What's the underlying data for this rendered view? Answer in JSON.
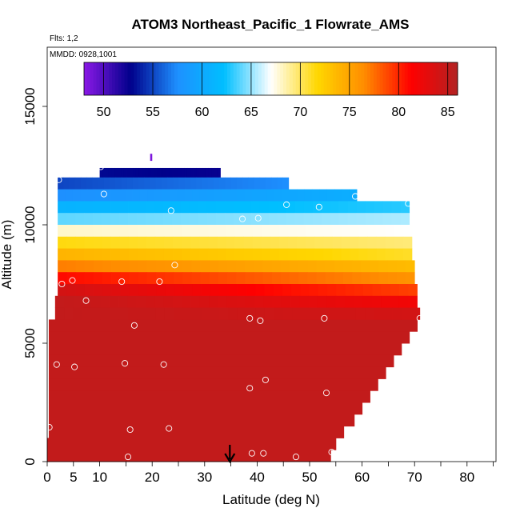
{
  "chart_data": {
    "type": "heatmap",
    "title": "ATOM3 Northeast_Pacific_1 Flowrate_AMS",
    "flights_label": "Flts: 1,2",
    "date_label": "MMDD: 0928,1001",
    "xlabel": "Latitude (deg N)",
    "ylabel": "Altitude (m)",
    "xlim": [
      0,
      85
    ],
    "ylim": [
      0,
      17500
    ],
    "x_ticks": [
      0,
      5,
      10,
      20,
      30,
      40,
      50,
      60,
      70,
      80
    ],
    "y_ticks": [
      0,
      5000,
      10000,
      15000
    ],
    "colorbar": {
      "min": 48,
      "max": 86,
      "ticks": [
        50,
        55,
        60,
        65,
        70,
        75,
        80,
        85
      ],
      "colors": [
        "#8b19e6",
        "#00008b",
        "#1e90ff",
        "#00bfff",
        "#ffffff",
        "#ffd700",
        "#ff8c00",
        "#ff0000",
        "#b22222"
      ]
    },
    "altitude_bands": [
      {
        "ymin": 12000,
        "ymax": 12400,
        "xmin": 10.0,
        "xmax": 33.0,
        "v_left": 53.0,
        "v_right": 52.5
      },
      {
        "ymin": 11500,
        "ymax": 12000,
        "xmin": 2.0,
        "xmax": 46.0,
        "v_left": 55.0,
        "v_right": 57.5
      },
      {
        "ymin": 11000,
        "ymax": 11500,
        "xmin": 2.0,
        "xmax": 59.0,
        "v_left": 57.5,
        "v_right": 60.5
      },
      {
        "ymin": 10500,
        "ymax": 11000,
        "xmin": 2.0,
        "xmax": 69.0,
        "v_left": 61.0,
        "v_right": 63.0
      },
      {
        "ymin": 10000,
        "ymax": 10500,
        "xmin": 2.0,
        "xmax": 69.0,
        "v_left": 64.0,
        "v_right": 65.5
      },
      {
        "ymin": 9500,
        "ymax": 10000,
        "xmin": 2.0,
        "xmax": 69.5,
        "v_left": 68.0,
        "v_right": 67.0
      },
      {
        "ymin": 9000,
        "ymax": 9500,
        "xmin": 2.0,
        "xmax": 69.5,
        "v_left": 71.5,
        "v_right": 69.5
      },
      {
        "ymin": 8500,
        "ymax": 9000,
        "xmin": 2.0,
        "xmax": 69.5,
        "v_left": 74.0,
        "v_right": 71.0
      },
      {
        "ymin": 8000,
        "ymax": 8500,
        "xmin": 2.0,
        "xmax": 70.0,
        "v_left": 77.0,
        "v_right": 73.5
      },
      {
        "ymin": 7500,
        "ymax": 8000,
        "xmin": 2.0,
        "xmax": 70.0,
        "v_left": 81.0,
        "v_right": 76.0
      },
      {
        "ymin": 7000,
        "ymax": 7500,
        "xmin": 2.0,
        "xmax": 70.5,
        "v_left": 84.0,
        "v_right": 79.0
      },
      {
        "ymin": 6500,
        "ymax": 7000,
        "xmin": 1.5,
        "xmax": 70.5,
        "v_left": 85.0,
        "v_right": 82.0
      },
      {
        "ymin": 6000,
        "ymax": 6500,
        "xmin": 1.5,
        "xmax": 71.0,
        "v_left": 85.0,
        "v_right": 84.0
      }
    ],
    "lower_region": {
      "value": 85,
      "steps": [
        {
          "ymin": 5500,
          "ymax": 6000,
          "xmax": 70.5
        },
        {
          "ymin": 5000,
          "ymax": 5500,
          "xmax": 69.0
        },
        {
          "ymin": 4500,
          "ymax": 5000,
          "xmax": 67.5
        },
        {
          "ymin": 4000,
          "ymax": 4500,
          "xmax": 66.0
        },
        {
          "ymin": 3500,
          "ymax": 4000,
          "xmax": 64.5
        },
        {
          "ymin": 3000,
          "ymax": 3500,
          "xmax": 63.0
        },
        {
          "ymin": 2500,
          "ymax": 3000,
          "xmax": 61.5
        },
        {
          "ymin": 2000,
          "ymax": 2500,
          "xmax": 60.0
        },
        {
          "ymin": 1500,
          "ymax": 2000,
          "xmax": 58.5
        },
        {
          "ymin": 1000,
          "ymax": 1500,
          "xmax": 56.5
        },
        {
          "ymin": 500,
          "ymax": 1000,
          "xmax": 55.0
        },
        {
          "ymin": 0,
          "ymax": 500,
          "xmax": 54.0
        }
      ]
    },
    "observations": [
      {
        "lat": 10.2,
        "alt": 12450
      },
      {
        "lat": 2.2,
        "alt": 11900
      },
      {
        "lat": 10.8,
        "alt": 11300
      },
      {
        "lat": 58.7,
        "alt": 11200
      },
      {
        "lat": 45.6,
        "alt": 10850
      },
      {
        "lat": 51.8,
        "alt": 10750
      },
      {
        "lat": 68.8,
        "alt": 10900
      },
      {
        "lat": 23.6,
        "alt": 10600
      },
      {
        "lat": 37.2,
        "alt": 10250
      },
      {
        "lat": 40.2,
        "alt": 10280
      },
      {
        "lat": 24.3,
        "alt": 8300
      },
      {
        "lat": 4.8,
        "alt": 7650
      },
      {
        "lat": 14.2,
        "alt": 7600
      },
      {
        "lat": 21.4,
        "alt": 7600
      },
      {
        "lat": 2.8,
        "alt": 7500
      },
      {
        "lat": 7.4,
        "alt": 6800
      },
      {
        "lat": 38.6,
        "alt": 6050
      },
      {
        "lat": 40.6,
        "alt": 5950
      },
      {
        "lat": 52.8,
        "alt": 6050
      },
      {
        "lat": 71.0,
        "alt": 6050
      },
      {
        "lat": 16.6,
        "alt": 5750
      },
      {
        "lat": 1.8,
        "alt": 4100
      },
      {
        "lat": 5.2,
        "alt": 4000
      },
      {
        "lat": 14.8,
        "alt": 4150
      },
      {
        "lat": 22.2,
        "alt": 4100
      },
      {
        "lat": 41.6,
        "alt": 3450
      },
      {
        "lat": 38.6,
        "alt": 3100
      },
      {
        "lat": 53.2,
        "alt": 2900
      },
      {
        "lat": 0.4,
        "alt": 1450
      },
      {
        "lat": 15.8,
        "alt": 1350
      },
      {
        "lat": 23.2,
        "alt": 1400
      },
      {
        "lat": 15.4,
        "alt": 200
      },
      {
        "lat": 39.0,
        "alt": 350
      },
      {
        "lat": 41.2,
        "alt": 350
      },
      {
        "lat": 47.4,
        "alt": 200
      },
      {
        "lat": 54.2,
        "alt": 400
      }
    ],
    "marker_arrow_latitude": 34.8,
    "top_marker_latitude": 19.8
  }
}
